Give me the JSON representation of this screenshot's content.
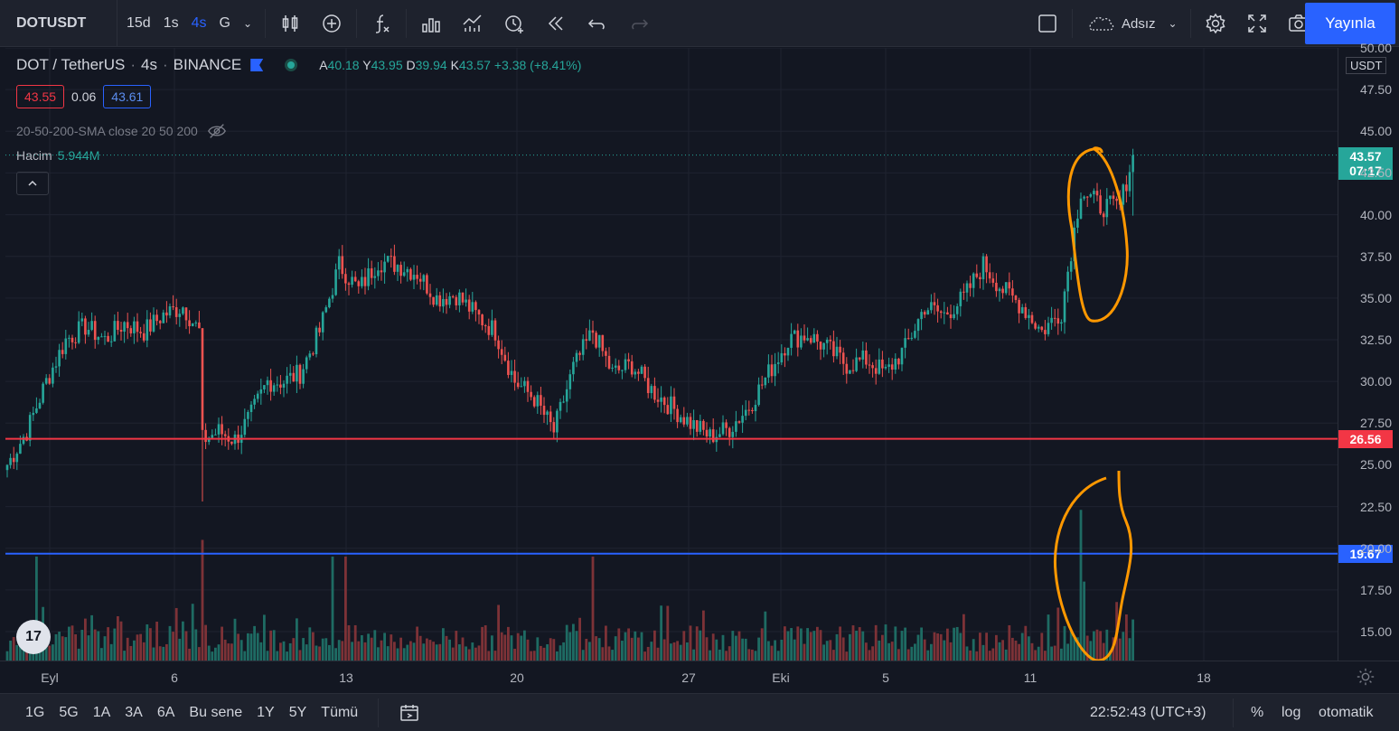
{
  "toolbar": {
    "symbol": "DOTUSDT",
    "intervals": [
      "15d",
      "1s",
      "4s",
      "G"
    ],
    "active_interval": "4s",
    "layout_name": "Adsız",
    "publish_label": "Yayınla"
  },
  "legend": {
    "pair": "DOT / TetherUS",
    "interval": "4s",
    "exchange": "BINANCE",
    "open_label": "A",
    "open": "40.18",
    "high_label": "Y",
    "high": "43.95",
    "low_label": "D",
    "low": "39.94",
    "close_label": "K",
    "close": "43.57",
    "change": "+3.38 (+8.41%)",
    "bid": "43.55",
    "spread": "0.06",
    "ask": "43.61",
    "indicator": "20-50-200-SMA close 20 50 200",
    "volume_label": "Hacim",
    "volume_value": "5.944M"
  },
  "price_axis": {
    "currency": "USDT",
    "ticks": [
      "50.00",
      "47.50",
      "45.00",
      "42.50",
      "40.00",
      "37.50",
      "35.00",
      "32.50",
      "30.00",
      "27.50",
      "25.00",
      "22.50",
      "20.00",
      "17.50",
      "15.00"
    ],
    "last_price": "43.57",
    "countdown": "07:17",
    "red_line_label": "26.56",
    "blue_line_label": "19.67"
  },
  "time_axis": {
    "ticks": [
      "Eyl",
      "6",
      "13",
      "20",
      "27",
      "Eki",
      "5",
      "11",
      "18"
    ]
  },
  "bottom_bar": {
    "ranges": [
      "1G",
      "5G",
      "1A",
      "3A",
      "6A",
      "Bu sene",
      "1Y",
      "5Y",
      "Tümü"
    ],
    "clock": "22:52:43 (UTC+3)",
    "percent": "%",
    "log": "log",
    "auto": "otomatik"
  },
  "colors": {
    "up": "#26a69a",
    "down": "#ef5350",
    "red_line": "#f23645",
    "blue_line": "#2962ff",
    "annotation": "#ff9800"
  },
  "chart_data": {
    "type": "candlestick",
    "title": "DOT / TetherUS · 4s · BINANCE",
    "ylim": [
      13.5,
      51
    ],
    "x_labels": [
      "Eyl",
      "6",
      "13",
      "20",
      "27",
      "Eki",
      "5",
      "11",
      "18"
    ],
    "horizontal_lines": [
      {
        "value": 26.56,
        "color": "#f23645"
      },
      {
        "value": 19.67,
        "color": "#2962ff"
      }
    ],
    "close_waypoints": [
      [
        0,
        25
      ],
      [
        6,
        27
      ],
      [
        12,
        30
      ],
      [
        18,
        32.5
      ],
      [
        24,
        33.3
      ],
      [
        30,
        32.5
      ],
      [
        36,
        33.5
      ],
      [
        42,
        33
      ],
      [
        48,
        34
      ],
      [
        54,
        34.5
      ],
      [
        59,
        33
      ],
      [
        60,
        26.5
      ],
      [
        65,
        27
      ],
      [
        70,
        26.5
      ],
      [
        75,
        28
      ],
      [
        80,
        30
      ],
      [
        85,
        30
      ],
      [
        90,
        30.5
      ],
      [
        96,
        33
      ],
      [
        102,
        37
      ],
      [
        108,
        35.5
      ],
      [
        114,
        37.2
      ],
      [
        120,
        37
      ],
      [
        126,
        36.5
      ],
      [
        132,
        35
      ],
      [
        138,
        35.2
      ],
      [
        144,
        34
      ],
      [
        150,
        33
      ],
      [
        156,
        30
      ],
      [
        162,
        29
      ],
      [
        168,
        27
      ],
      [
        174,
        30.8
      ],
      [
        180,
        33
      ],
      [
        186,
        30.5
      ],
      [
        192,
        31
      ],
      [
        198,
        29.5
      ],
      [
        204,
        28.5
      ],
      [
        210,
        27.5
      ],
      [
        216,
        26.7
      ],
      [
        222,
        27.2
      ],
      [
        228,
        28.5
      ],
      [
        234,
        30.5
      ],
      [
        240,
        32.5
      ],
      [
        246,
        32.8
      ],
      [
        252,
        32
      ],
      [
        258,
        31
      ],
      [
        264,
        31.3
      ],
      [
        270,
        30.5
      ],
      [
        276,
        32
      ],
      [
        282,
        34.5
      ],
      [
        288,
        34
      ],
      [
        294,
        35
      ],
      [
        300,
        37
      ],
      [
        306,
        35.5
      ],
      [
        312,
        34.5
      ],
      [
        318,
        33
      ],
      [
        324,
        34.2
      ],
      [
        330,
        41.5
      ],
      [
        336,
        40.5
      ],
      [
        342,
        40.5
      ],
      [
        346,
        43.57
      ]
    ],
    "volume_spikes": [
      {
        "index": 9,
        "value": 19.5
      },
      {
        "index": 60,
        "value": 20.5
      },
      {
        "index": 100,
        "value": 19.5
      },
      {
        "index": 104,
        "value": 19.5
      },
      {
        "index": 180,
        "value": 19.5
      },
      {
        "index": 330,
        "value": 22.3
      },
      {
        "index": 331,
        "value": 18.0
      }
    ]
  }
}
